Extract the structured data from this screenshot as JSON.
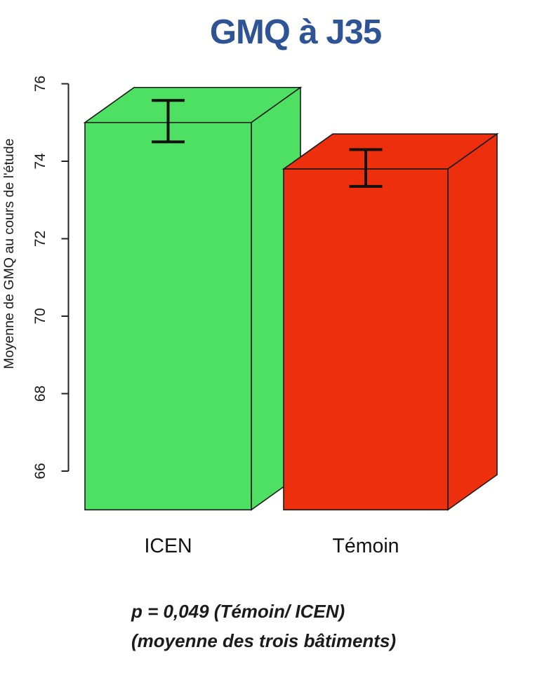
{
  "page": {
    "background_color": "#ffffff"
  },
  "chart_data": {
    "type": "bar",
    "projection": "3d",
    "title": "GMQ à J35",
    "title_color": "#2F5496",
    "categories": [
      "ICEN",
      "Témoin"
    ],
    "series": [
      {
        "name": "Moyenne de GMQ",
        "values": [
          75.0,
          73.8
        ]
      }
    ],
    "error_bars": [
      {
        "low": 74.5,
        "high": 75.57
      },
      {
        "low": 73.35,
        "high": 74.3
      }
    ],
    "bar_colors": [
      "#4EE063",
      "#EE2F0D"
    ],
    "outline_color": "#1a1a1a",
    "xlabel": "",
    "ylabel": "Moyenne de GMQ au cours de l'étude",
    "yticks": [
      66,
      68,
      70,
      72,
      74,
      76
    ],
    "axis_range_shown": [
      66,
      76
    ],
    "ylim": [
      65,
      76
    ],
    "grid": false,
    "legend": "none",
    "annotation_lines": [
      "p = 0,049 (Témoin/ ICEN)",
      "(moyenne des trois bâtiments)"
    ]
  }
}
